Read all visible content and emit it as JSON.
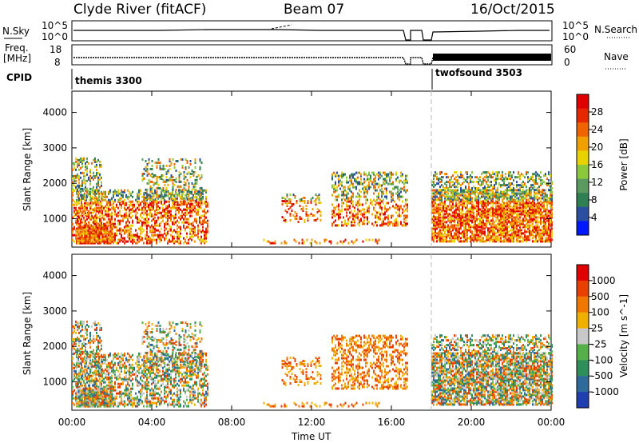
{
  "header": {
    "station": "Clyde River (fitACF)",
    "beam": "Beam 07",
    "date": "16/Oct/2015"
  },
  "summary": {
    "nsky_label": "N.Sky",
    "nsky_ticks": [
      "10^5",
      "10^0"
    ],
    "nsearch_label": "N.Search",
    "nsearch_ticks": [
      "10^5",
      "10^0"
    ],
    "freq_label": "Freq.",
    "freq_unit": "[MHz]",
    "freq_ticks": [
      "18",
      "8"
    ],
    "nave_label": "Nave",
    "nave_ticks": [
      "60",
      "0"
    ],
    "cpid_label": "CPID",
    "cpid_segments": [
      {
        "name": "themis 3300",
        "start_hour": 0
      },
      {
        "name": "twofsound 3503",
        "start_hour": 18
      }
    ]
  },
  "colorbars": {
    "power": {
      "label": "Power [dB]",
      "ticks": [
        "28",
        "24",
        "20",
        "16",
        "12",
        "8",
        "4"
      ],
      "colors": [
        "#0018ff",
        "#2a4fa0",
        "#2e7f52",
        "#5a9a60",
        "#8cc83c",
        "#e8d200",
        "#f0a000",
        "#f06400",
        "#e62800",
        "#e00000"
      ]
    },
    "velocity": {
      "label": "Velocity [m s^-1]",
      "ticks": [
        "1000",
        "500",
        "100",
        "25",
        "-25",
        "-100",
        "-500",
        "-1000"
      ],
      "colors": [
        "#1f3fb0",
        "#2e6a9a",
        "#2f8f5a",
        "#56b04a",
        "#c8c8c8",
        "#f0b000",
        "#f07800",
        "#e84000",
        "#e00000"
      ]
    }
  },
  "chart_data": [
    {
      "type": "heatmap",
      "panel": "power",
      "ylabel": "Slant Range [km]",
      "ylim": [
        200,
        4600
      ],
      "yticks": [
        1000,
        2000,
        3000,
        4000
      ],
      "xlim_hours": [
        0,
        24
      ],
      "xticks": [
        "00:00",
        "04:00",
        "08:00",
        "12:00",
        "16:00",
        "20:00",
        "00:00"
      ],
      "scale": "Power [dB]",
      "range": [
        0,
        30
      ],
      "mode_change_hour": 18
    },
    {
      "type": "heatmap",
      "panel": "velocity",
      "ylabel": "Slant Range [km]",
      "xlabel": "Time UT",
      "ylim": [
        200,
        4600
      ],
      "yticks": [
        1000,
        2000,
        3000,
        4000
      ],
      "xlim_hours": [
        0,
        24
      ],
      "xticks": [
        "00:00",
        "04:00",
        "08:00",
        "12:00",
        "16:00",
        "20:00",
        "00:00"
      ],
      "scale": "Velocity [m s^-1]",
      "range": [
        -1000,
        1000
      ],
      "mode_change_hour": 18
    }
  ]
}
